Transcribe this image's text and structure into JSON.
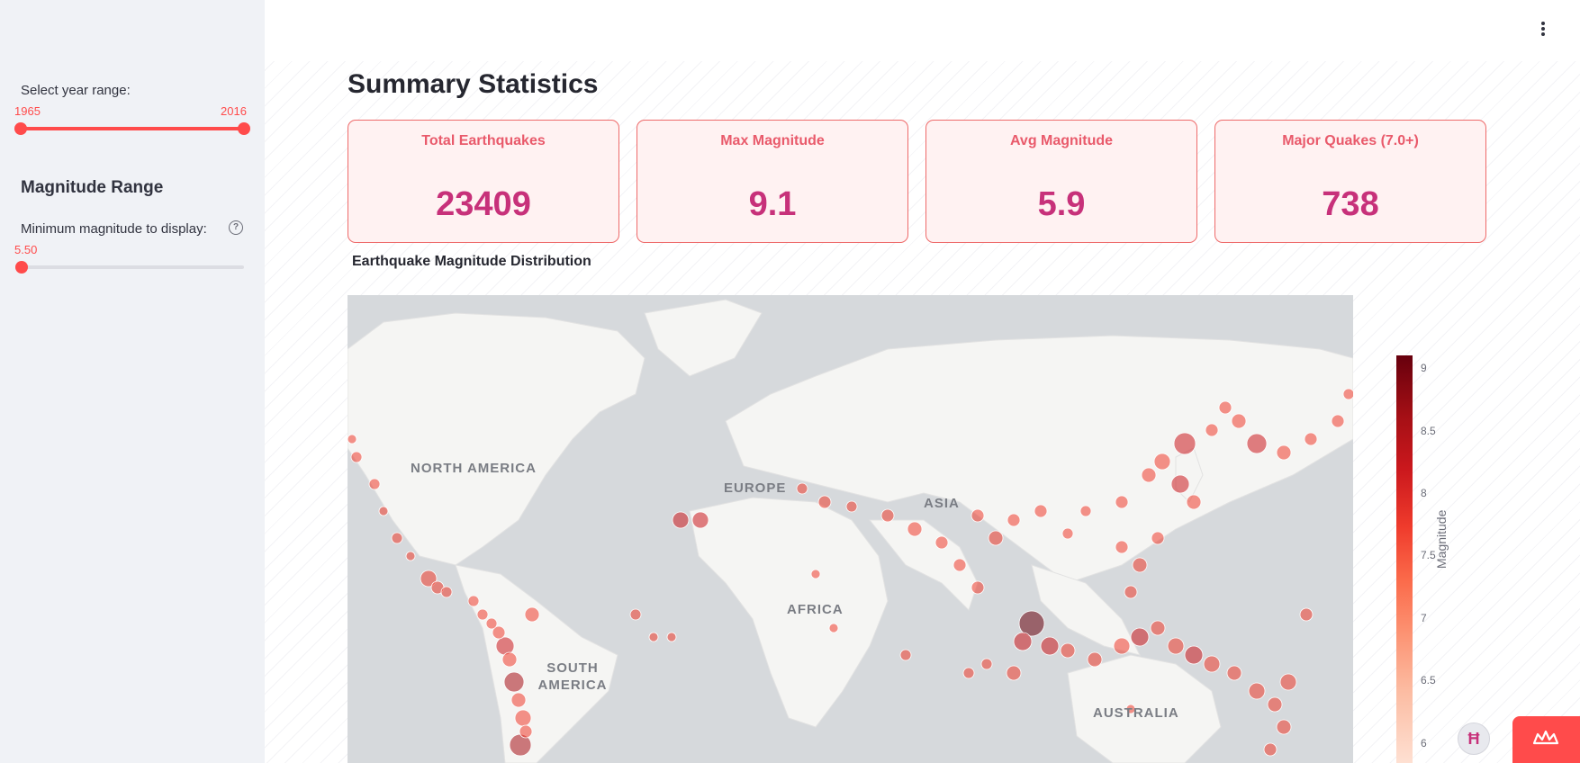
{
  "sidebar": {
    "year_range": {
      "label": "Select year range:",
      "min_value": "1965",
      "max_value": "2016"
    },
    "magnitude_section": {
      "heading": "Magnitude Range",
      "min_label": "Minimum magnitude to display:",
      "min_value": "5.50",
      "help_icon": "question-circle-icon"
    }
  },
  "header": {
    "menu_icon": "kebab-menu-icon"
  },
  "summary": {
    "title": "Summary Statistics",
    "metrics": [
      {
        "label": "Total Earthquakes",
        "value": "23409"
      },
      {
        "label": "Max Magnitude",
        "value": "9.1"
      },
      {
        "label": "Avg Magnitude",
        "value": "5.9"
      },
      {
        "label": "Major Quakes (7.0+)",
        "value": "738"
      }
    ]
  },
  "map": {
    "title": "Earthquake Magnitude Distribution",
    "regions": {
      "north_america": "NORTH AMERICA",
      "europe": "EUROPE",
      "asia": "ASIA",
      "africa": "AFRICA",
      "south_america": "SOUTH AMERICA",
      "australia": "AUSTRALIA"
    },
    "colorbar": {
      "title": "Magnitude",
      "ticks": [
        "9",
        "8.5",
        "8",
        "7.5",
        "7",
        "6.5",
        "6"
      ]
    }
  },
  "colors": {
    "accent": "#ff4b4b",
    "metric_value": "#c7317a",
    "metric_label": "#e95a6b"
  },
  "icons": {
    "fab": "app-logo-icon",
    "crown": "crown-icon"
  }
}
